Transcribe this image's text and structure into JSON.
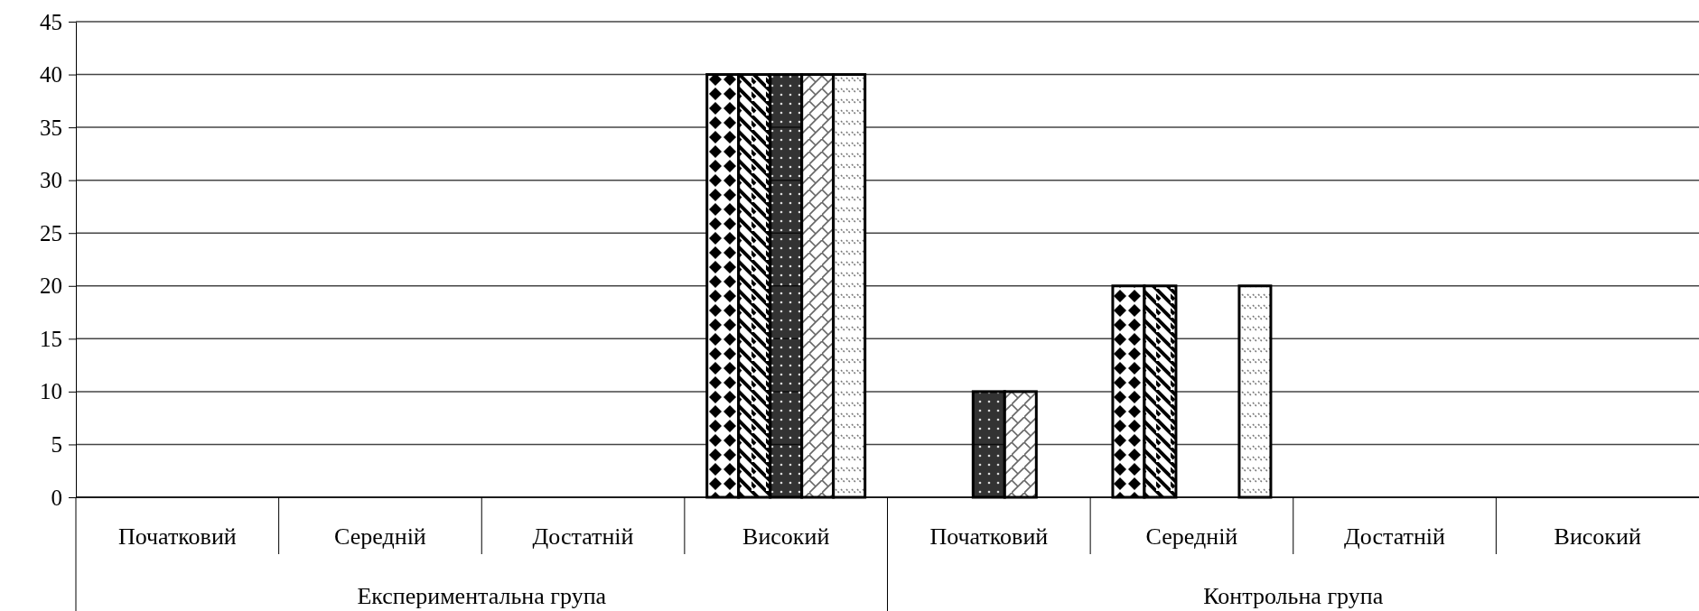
{
  "chart_data": {
    "type": "bar",
    "categories": [
      "Початковий",
      "Середній",
      "Достатній",
      "Високий",
      "Початковий",
      "Середній",
      "Достатній",
      "Високий"
    ],
    "series": [
      {
        "color": "#000000",
        "values": [
          0,
          0,
          0,
          40,
          0,
          20,
          0,
          0
        ]
      },
      {
        "color": "#000000",
        "values": [
          0,
          0,
          0,
          40,
          0,
          20,
          0,
          0
        ]
      },
      {
        "color": "#000000",
        "values": [
          0,
          0,
          0,
          40,
          10,
          0,
          0,
          0
        ]
      },
      {
        "color": "#000000",
        "values": [
          0,
          0,
          0,
          40,
          10,
          0,
          0,
          0
        ]
      },
      {
        "color": "#000000",
        "values": [
          0,
          0,
          0,
          40,
          0,
          20,
          0,
          0
        ]
      }
    ],
    "ylim": [
      0,
      45
    ],
    "yticks": [
      0,
      5,
      10,
      15,
      20,
      25,
      30,
      35,
      40,
      45
    ],
    "grid": "y",
    "annotations": [
      "Експериментальна група",
      "Контрольна група"
    ]
  }
}
